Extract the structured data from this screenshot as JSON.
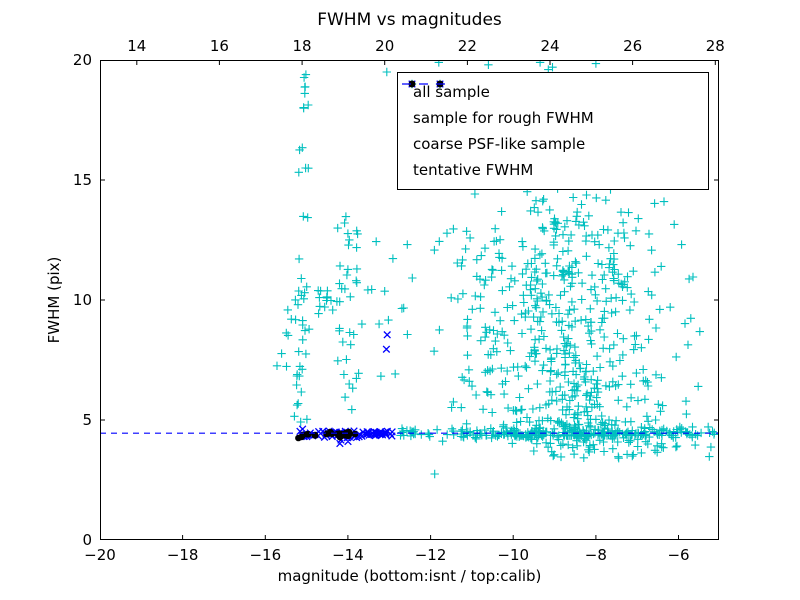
{
  "colors": {
    "background": "#ffffff",
    "axis": "#000000",
    "text": "#000000"
  },
  "chart_data": {
    "type": "scatter",
    "title": "FWHM vs magnitudes",
    "xlabel": "magnitude (bottom:isnt / top:calib)",
    "ylabel": "FWHM (pix)",
    "axes": {
      "xlim": [
        -20,
        -5.02
      ],
      "ylim": [
        0,
        20
      ],
      "top_xlim": [
        13.11,
        28.09
      ],
      "grid": false,
      "xticks_bottom": {
        "values": [
          -20,
          -18,
          -16,
          -14,
          -12,
          -10,
          -8,
          -6
        ],
        "labels": [
          "−20",
          "−18",
          "−16",
          "−14",
          "−12",
          "−10",
          "−8",
          "−6"
        ]
      },
      "xticks_top": {
        "values": [
          14,
          16,
          18,
          20,
          22,
          24,
          26,
          28
        ],
        "labels": [
          "14",
          "16",
          "18",
          "20",
          "22",
          "24",
          "26",
          "28"
        ]
      },
      "yticks": {
        "values": [
          0,
          5,
          10,
          15,
          20
        ],
        "labels": [
          "0",
          "5",
          "10",
          "15",
          "20"
        ]
      }
    },
    "legend": {
      "position": "upper right"
    },
    "tentative_fwhm_value": 4.45,
    "series": [
      {
        "name": "all sample",
        "marker": "plus",
        "color": "#00bfbf",
        "seed": 7,
        "clusters": [
          {
            "n": 26,
            "x": [
              -15.3,
              -14.93
            ],
            "y": [
              4.8,
              10.5
            ]
          },
          {
            "n": 18,
            "x": [
              -15.22,
              -14.95
            ],
            "y": [
              10.5,
              19.6
            ]
          },
          {
            "n": 7,
            "x": [
              -15.72,
              -15.35
            ],
            "y": [
              7.2,
              9.6
            ]
          },
          {
            "n": 12,
            "x": [
              -14.78,
              -14.35
            ],
            "y": [
              8.8,
              10.4
            ]
          },
          {
            "n": 24,
            "x": [
              -14.32,
              -13.65
            ],
            "y": [
              8.7,
              13.6
            ]
          },
          {
            "n": 13,
            "x": [
              -14.3,
              -13.7
            ],
            "y": [
              4.8,
              8.7
            ]
          },
          {
            "n": 14,
            "x": [
              -13.6,
              -12.35
            ],
            "y": [
              4.8,
              12.6
            ]
          },
          {
            "n": 430,
            "x": {
              "mu": -8.4,
              "sig": 1.35,
              "clip": [
                -12,
                -5.1
              ]
            },
            "y": [
              4.35,
              13.4
            ],
            "pow": 2.4
          },
          {
            "n": 190,
            "x": {
              "mu": -9.2,
              "sig": 1.15,
              "clip": [
                -12,
                -5.3
              ]
            },
            "y": [
              7.0,
              13.8
            ]
          },
          {
            "n": 60,
            "x": {
              "mu": -9.1,
              "sig": 1.0,
              "clip": [
                -11.8,
                -6.3
              ]
            },
            "y": [
              13.8,
              19.2
            ]
          },
          {
            "n": 180,
            "x": [
              -12.75,
              -5.1
            ],
            "y": {
              "mu": 4.45,
              "sig": 0.12
            }
          },
          {
            "n": 55,
            "x": {
              "mu": -7.6,
              "sig": 1.5,
              "clip": [
                -10.2,
                -5.15
              ]
            },
            "y": [
              3.4,
              4.2
            ]
          }
        ],
        "points": [
          [
            -13.06,
            19.5
          ],
          [
            -11.8,
            19.9
          ],
          [
            -10.6,
            19.8
          ],
          [
            -9.35,
            19.9
          ],
          [
            -9.15,
            19.6
          ],
          [
            -9.05,
            19.7
          ],
          [
            -8.0,
            19.85
          ],
          [
            -11.9,
            2.75
          ],
          [
            -6.35,
            14.1
          ],
          [
            -6.2,
            9.7
          ]
        ]
      },
      {
        "name": "sample for rough FWHM",
        "marker": "x",
        "color": "#0000ff",
        "seed": 11,
        "clusters": [
          {
            "n": 50,
            "x": [
              -15.2,
              -13.6
            ],
            "y": {
              "mu": 4.4,
              "sig": 0.1
            }
          },
          {
            "n": 28,
            "x": [
              -13.6,
              -12.92
            ],
            "y": {
              "mu": 4.42,
              "sig": 0.06
            }
          }
        ],
        "points": [
          [
            -13.05,
            8.55
          ],
          [
            -13.07,
            7.95
          ]
        ]
      },
      {
        "name": "coarse PSF-like sample",
        "marker": "dot",
        "color": "#000000",
        "seed": 3,
        "clusters": [
          {
            "n": 26,
            "x": [
              -15.2,
              -13.8
            ],
            "y": {
              "mu": 4.42,
              "sig": 0.055
            }
          }
        ],
        "points": []
      },
      {
        "name": "tentative FWHM",
        "marker": "dashed-line",
        "color": "#0000ff",
        "y": 4.45
      }
    ]
  }
}
